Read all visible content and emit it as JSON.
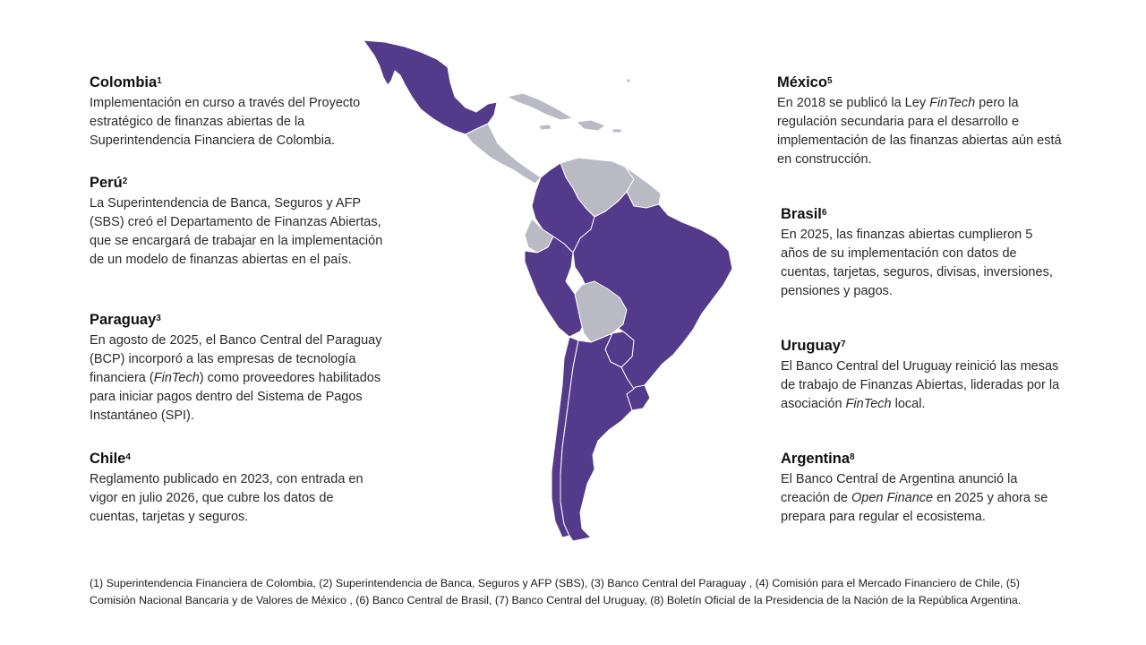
{
  "left": [
    {
      "name": "Colombia",
      "ref": "1",
      "text": "Implementación en curso a través del Proyecto estratégico de finanzas abiertas de la Superintendencia Financiera de Colombia."
    },
    {
      "name": "Perú",
      "ref": "2",
      "text": "La Superintendencia de Banca, Seguros y AFP (SBS) creó el Departamento de Finanzas Abiertas, que se encargará de trabajar en la implementación de un modelo de finanzas abiertas en el país."
    },
    {
      "name": "Paraguay",
      "ref": "3",
      "text_before": "En agosto de 2025, el Banco Central del Paraguay (BCP) incorporó a las empresas de tecnología financiera (",
      "italic": "FinTech",
      "text_after": ") como proveedores habilitados para iniciar pagos dentro del Sistema de Pagos Instantáneo (SPI)."
    },
    {
      "name": "Chile",
      "ref": "4",
      "text": "Reglamento publicado en 2023, con entrada en vigor en julio 2026, que cubre los datos de cuentas, tarjetas y seguros."
    }
  ],
  "right": [
    {
      "name": "México",
      "ref": "5",
      "text_before": "En 2018 se publicó la Ley ",
      "italic": "FinTech",
      "text_after": " pero la regulación secundaria para el desarrollo e implementación de las finanzas abiertas aún está en construcción."
    },
    {
      "name": "Brasil",
      "ref": "6",
      "text": "En 2025, las finanzas abiertas cumplieron 5 años de su implementación con datos de cuentas, tarjetas, seguros, divisas, inversiones, pensiones y pagos."
    },
    {
      "name": "Uruguay",
      "ref": "7",
      "text_before": "El Banco Central del Uruguay reinició las mesas de trabajo de Finanzas Abiertas, lideradas por la asociación ",
      "italic": "FinTech",
      "text_after": " local."
    },
    {
      "name": "Argentina",
      "ref": "8",
      "text_before": "El Banco Central de Argentina anunció la creación de ",
      "italic": "Open Finance",
      "text_after": " en 2025 y ahora se prepara para regular el ecosistema."
    }
  ],
  "map": {
    "highlight_color": "#533a8b",
    "other_color": "#b9bac4",
    "border_color": "#ffffff",
    "highlighted_countries": [
      "México",
      "Colombia",
      "Perú",
      "Brasil",
      "Paraguay",
      "Uruguay",
      "Argentina",
      "Chile"
    ],
    "other_countries": [
      "Central America",
      "Caribbean",
      "Venezuela",
      "Ecuador",
      "Bolivia",
      "Guyanas"
    ]
  },
  "footnote": "(1) Superintendencia Financiera de Colombia, (2) Superintendencia de Banca, Seguros y AFP (SBS), (3) Banco Central del Paraguay , (4) Comisión para el Mercado Financiero de Chile, (5) Comisión Nacional Bancaria y de Valores de México , (6) Banco Central de Brasil, (7) Banco Central del Uruguay, (8) Boletín Oficial de la Presidencia de la Nación de la República Argentina."
}
